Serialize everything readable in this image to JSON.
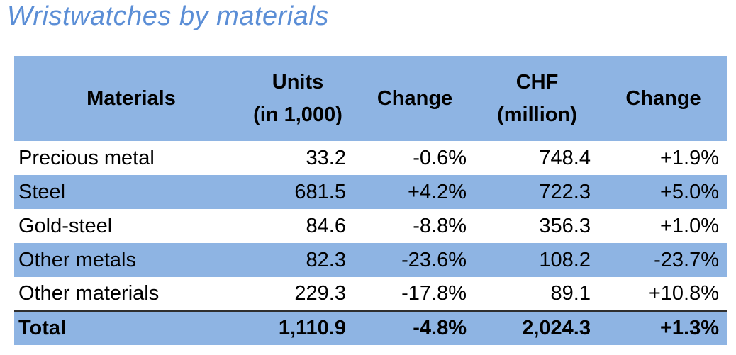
{
  "title": "Wristwatches by materials",
  "chart_data": {
    "type": "table",
    "title": "Wristwatches by materials",
    "columns": [
      {
        "line1": "Materials",
        "line2": ""
      },
      {
        "line1": "Units",
        "line2": "(in 1,000)"
      },
      {
        "line1": "Change",
        "line2": ""
      },
      {
        "line1": "CHF",
        "line2": "(million)"
      },
      {
        "line1": "Change",
        "line2": ""
      }
    ],
    "rows": [
      {
        "material": "Precious metal",
        "units": "33.2",
        "units_change": "-0.6%",
        "chf": "748.4",
        "chf_change": "+1.9%"
      },
      {
        "material": "Steel",
        "units": "681.5",
        "units_change": "+4.2%",
        "chf": "722.3",
        "chf_change": "+5.0%"
      },
      {
        "material": "Gold-steel",
        "units": "84.6",
        "units_change": "-8.8%",
        "chf": "356.3",
        "chf_change": "+1.0%"
      },
      {
        "material": "Other metals",
        "units": "82.3",
        "units_change": "-23.6%",
        "chf": "108.2",
        "chf_change": "-23.7%"
      },
      {
        "material": "Other materials",
        "units": "229.3",
        "units_change": "-17.8%",
        "chf": "89.1",
        "chf_change": "+10.8%"
      }
    ],
    "total": {
      "material": "Total",
      "units": "1,110.9",
      "units_change": "-4.8%",
      "chf": "2,024.3",
      "chf_change": "+1.3%"
    },
    "colors": {
      "header_fill": "#8eb4e3",
      "band_fill": "#8eb4e3",
      "title_color": "#5b8ed6"
    }
  }
}
